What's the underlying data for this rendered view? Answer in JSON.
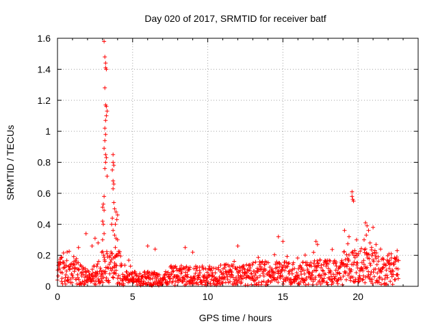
{
  "chart_data": {
    "type": "scatter",
    "title": "Day 020 of 2017, SRMTID for receiver batf",
    "xlabel": "GPS time / hours",
    "ylabel": "SRMTID / TECUs",
    "xlim": [
      0,
      24
    ],
    "ylim": [
      0,
      1.6
    ],
    "x_ticks": [
      0,
      5,
      10,
      15,
      20
    ],
    "y_ticks": [
      0,
      0.2,
      0.4,
      0.6,
      0.8,
      1.0,
      1.2,
      1.4,
      1.6
    ],
    "x_tick_labels": [
      "0",
      "5",
      "10",
      "15",
      "20"
    ],
    "y_tick_labels": [
      "0",
      "0.2",
      "0.4",
      "0.6",
      "0.8",
      "1",
      "1.2",
      "1.4",
      "1.6"
    ],
    "grid": true,
    "marker": "+",
    "marker_color": "#ff0000",
    "series": [
      {
        "name": "SRMTID",
        "points": [
          [
            3.1,
            1.58
          ],
          [
            3.15,
            1.48
          ],
          [
            3.2,
            1.44
          ],
          [
            3.2,
            1.41
          ],
          [
            3.25,
            1.4
          ],
          [
            3.15,
            1.28
          ],
          [
            3.2,
            1.17
          ],
          [
            3.25,
            1.16
          ],
          [
            3.3,
            1.13
          ],
          [
            3.25,
            1.1
          ],
          [
            3.2,
            1.07
          ],
          [
            3.15,
            1.02
          ],
          [
            3.2,
            0.98
          ],
          [
            3.15,
            0.94
          ],
          [
            3.1,
            0.89
          ],
          [
            3.2,
            0.85
          ],
          [
            3.25,
            0.83
          ],
          [
            3.2,
            0.8
          ],
          [
            3.15,
            0.76
          ],
          [
            3.3,
            0.71
          ],
          [
            3.1,
            0.58
          ],
          [
            3.05,
            0.53
          ],
          [
            3.0,
            0.51
          ],
          [
            3.1,
            0.49
          ],
          [
            3.0,
            0.42
          ],
          [
            3.05,
            0.4
          ],
          [
            3.1,
            0.34
          ],
          [
            3.0,
            0.3
          ],
          [
            2.95,
            0.22
          ],
          [
            3.7,
            0.85
          ],
          [
            3.7,
            0.8
          ],
          [
            3.75,
            0.78
          ],
          [
            3.65,
            0.75
          ],
          [
            3.7,
            0.68
          ],
          [
            3.75,
            0.66
          ],
          [
            3.7,
            0.63
          ],
          [
            3.75,
            0.54
          ],
          [
            3.8,
            0.5
          ],
          [
            3.9,
            0.48
          ],
          [
            4.0,
            0.46
          ],
          [
            3.95,
            0.43
          ],
          [
            3.85,
            0.4
          ],
          [
            3.65,
            0.44
          ],
          [
            3.6,
            0.4
          ],
          [
            3.7,
            0.36
          ],
          [
            3.8,
            0.33
          ],
          [
            3.9,
            0.31
          ],
          [
            4.0,
            0.3
          ],
          [
            3.85,
            0.25
          ],
          [
            3.9,
            0.2
          ],
          [
            3.8,
            0.15
          ],
          [
            19.6,
            0.61
          ],
          [
            19.6,
            0.58
          ],
          [
            19.65,
            0.56
          ],
          [
            19.7,
            0.55
          ],
          [
            19.1,
            0.36
          ],
          [
            19.4,
            0.32
          ],
          [
            20.5,
            0.41
          ],
          [
            20.6,
            0.39
          ],
          [
            20.7,
            0.36
          ],
          [
            21.0,
            0.38
          ],
          [
            20.55,
            0.33
          ],
          [
            20.4,
            0.3
          ],
          [
            19.9,
            0.3
          ],
          [
            20.8,
            0.28
          ],
          [
            20.9,
            0.25
          ],
          [
            21.2,
            0.27
          ],
          [
            21.5,
            0.24
          ],
          [
            1.9,
            0.34
          ],
          [
            2.5,
            0.31
          ],
          [
            2.7,
            0.28
          ],
          [
            2.3,
            0.26
          ],
          [
            1.4,
            0.25
          ],
          [
            14.7,
            0.32
          ],
          [
            15.0,
            0.29
          ],
          [
            17.2,
            0.29
          ],
          [
            17.3,
            0.27
          ],
          [
            6.0,
            0.26
          ],
          [
            6.5,
            0.24
          ],
          [
            8.5,
            0.25
          ],
          [
            12.0,
            0.26
          ],
          [
            9.0,
            0.22
          ],
          [
            22.6,
            0.23
          ],
          [
            22.2,
            0.21
          ]
        ]
      }
    ]
  }
}
